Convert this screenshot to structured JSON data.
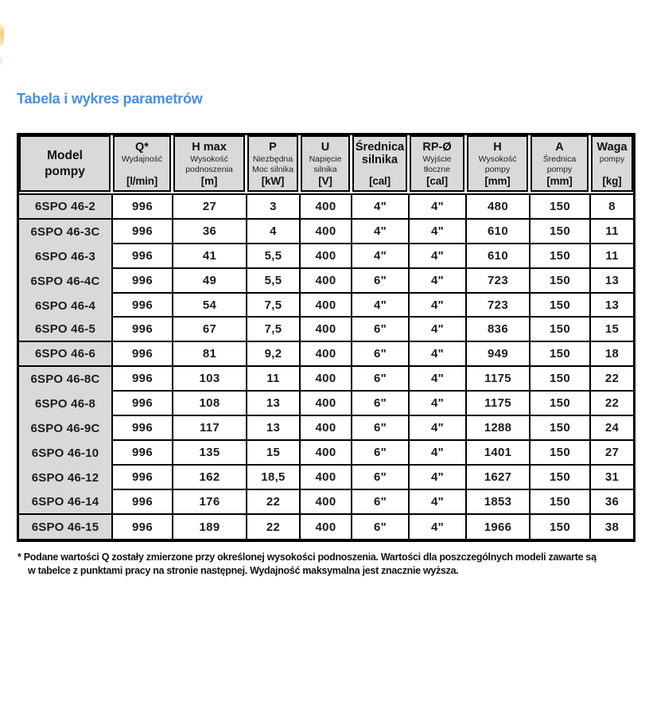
{
  "page": {
    "title": "Tabela i wykres parametrów"
  },
  "colors": {
    "title": "#4a8ee2",
    "header_bg": "#d9d9d9",
    "border": "#000000",
    "text": "#1c1c1c"
  },
  "table": {
    "columns": [
      {
        "key": "model",
        "main": "Model\npompy",
        "sub": "",
        "unit": ""
      },
      {
        "key": "q",
        "main": "Q*",
        "sub": "Wydajność",
        "unit": "[l/min]"
      },
      {
        "key": "hmax",
        "main": "H max",
        "sub": "Wysokość\npodnoszenia",
        "unit": "[m]"
      },
      {
        "key": "p",
        "main": "P",
        "sub": "Niezbędna\nMoc silnika",
        "unit": "[kW]"
      },
      {
        "key": "u",
        "main": "U",
        "sub": "Napięcie\nsilnika",
        "unit": "[V]"
      },
      {
        "key": "motor-diameter",
        "main": "Średnica\nsilnika",
        "sub": "",
        "unit": "[cal]"
      },
      {
        "key": "rp",
        "main": "RP-Ø",
        "sub": "Wyjście\ntłoczne",
        "unit": "[cal]"
      },
      {
        "key": "h",
        "main": "H",
        "sub": "Wysokość\npompy",
        "unit": "[mm]"
      },
      {
        "key": "a",
        "main": "A",
        "sub": "Średnica\npompy",
        "unit": "[mm]"
      },
      {
        "key": "waga",
        "main": "Waga",
        "sub": "pompy",
        "unit": "[kg]"
      }
    ],
    "rows": [
      [
        "6SPO 46-2",
        "996",
        "27",
        "3",
        "400",
        "4\"",
        "4\"",
        "480",
        "150",
        "8"
      ],
      [
        "6SPO 46-3C",
        "996",
        "36",
        "4",
        "400",
        "4\"",
        "4\"",
        "610",
        "150",
        "11"
      ],
      [
        "6SPO 46-3",
        "996",
        "41",
        "5,5",
        "400",
        "4\"",
        "4\"",
        "610",
        "150",
        "11"
      ],
      [
        "6SPO 46-4C",
        "996",
        "49",
        "5,5",
        "400",
        "6\"",
        "4\"",
        "723",
        "150",
        "13"
      ],
      [
        "6SPO 46-4",
        "996",
        "54",
        "7,5",
        "400",
        "4\"",
        "4\"",
        "723",
        "150",
        "13"
      ],
      [
        "6SPO 46-5",
        "996",
        "67",
        "7,5",
        "400",
        "6\"",
        "4\"",
        "836",
        "150",
        "15"
      ],
      [
        "6SPO 46-6",
        "996",
        "81",
        "9,2",
        "400",
        "6\"",
        "4\"",
        "949",
        "150",
        "18"
      ],
      [
        "6SPO 46-8C",
        "996",
        "103",
        "11",
        "400",
        "6\"",
        "4\"",
        "1175",
        "150",
        "22"
      ],
      [
        "6SPO 46-8",
        "996",
        "108",
        "13",
        "400",
        "6\"",
        "4\"",
        "1175",
        "150",
        "22"
      ],
      [
        "6SPO 46-9C",
        "996",
        "117",
        "13",
        "400",
        "6\"",
        "4\"",
        "1288",
        "150",
        "24"
      ],
      [
        "6SPO 46-10",
        "996",
        "135",
        "15",
        "400",
        "6\"",
        "4\"",
        "1401",
        "150",
        "27"
      ],
      [
        "6SPO 46-12",
        "996",
        "162",
        "18,5",
        "400",
        "6\"",
        "4\"",
        "1627",
        "150",
        "31"
      ],
      [
        "6SPO 46-14",
        "996",
        "176",
        "22",
        "400",
        "6\"",
        "4\"",
        "1853",
        "150",
        "36"
      ],
      [
        "6SPO 46-15",
        "996",
        "189",
        "22",
        "400",
        "6\"",
        "4\"",
        "1966",
        "150",
        "38"
      ]
    ],
    "model_group_separators": [
      0,
      5,
      6,
      12
    ]
  },
  "footnote": {
    "lines": [
      "* Podane wartości Q zostały zmierzone przy określonej wysokości podnoszenia. Wartości dla poszczególnych modeli zawarte są",
      "w tabelce z punktami pracy na stronie następnej. Wydajność maksymalna jest znacznie wyższa."
    ]
  }
}
